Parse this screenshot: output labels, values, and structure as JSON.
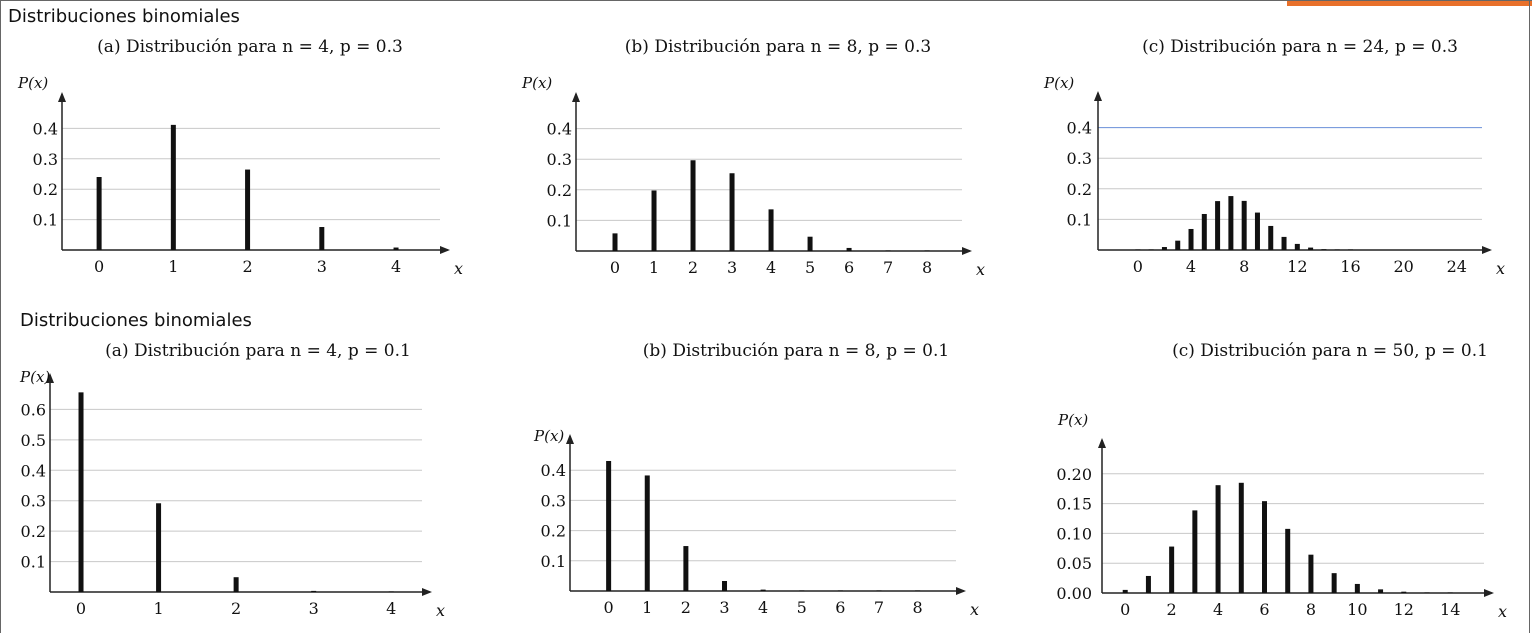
{
  "header": {
    "title_top": "Distribuciones binomiales",
    "title_bottom": "Distribuciones binomiales"
  },
  "colors": {
    "accent": "#e8702a",
    "bar": "#111111",
    "grid": "#c8c8c8",
    "axis": "#222222",
    "blue_line": "#6a8fd8"
  },
  "chart_data": [
    {
      "id": "a1",
      "type": "bar",
      "title": "(a) Distribución para n = 4, p = 0.3",
      "xlabel": "x",
      "ylabel": "P(x)",
      "x": [
        0,
        1,
        2,
        3,
        4
      ],
      "values": [
        0.2401,
        0.4116,
        0.2646,
        0.0756,
        0.0081
      ],
      "xlim": [
        -0.5,
        4.7
      ],
      "ylim": [
        0,
        0.5
      ],
      "xticks": [
        0,
        1,
        2,
        3,
        4
      ],
      "yticks": [
        "0.1",
        "0.2",
        "0.3",
        "0.4"
      ],
      "yticks_val": [
        0.1,
        0.2,
        0.3,
        0.4
      ],
      "grid": true
    },
    {
      "id": "b1",
      "type": "bar",
      "title": "(b) Distribución para n = 8, p = 0.3",
      "xlabel": "x",
      "ylabel": "P(x)",
      "x": [
        0,
        1,
        2,
        3,
        4,
        5,
        6,
        7,
        8
      ],
      "values": [
        0.0576,
        0.1977,
        0.2965,
        0.2541,
        0.1361,
        0.0467,
        0.01,
        0.0012,
        0.0001
      ],
      "xlim": [
        -1,
        9.1
      ],
      "ylim": [
        0,
        0.5
      ],
      "xticks": [
        0,
        1,
        2,
        3,
        4,
        5,
        6,
        7,
        8
      ],
      "yticks": [
        "0.1",
        "0.2",
        "0.3",
        "0.4"
      ],
      "yticks_val": [
        0.1,
        0.2,
        0.3,
        0.4
      ],
      "grid": true
    },
    {
      "id": "c1",
      "type": "bar",
      "title": "(c) Distribución para n = 24, p = 0.3",
      "xlabel": "x",
      "ylabel": "P(x)",
      "x": [
        0,
        1,
        2,
        3,
        4,
        5,
        6,
        7,
        8,
        9,
        10,
        11,
        12,
        13,
        14,
        15,
        16
      ],
      "values": [
        0.0002,
        0.0019,
        0.0097,
        0.0305,
        0.0687,
        0.1177,
        0.1598,
        0.1762,
        0.1605,
        0.1223,
        0.0786,
        0.0428,
        0.0199,
        0.0079,
        0.0027,
        0.0008,
        0.0002
      ],
      "xlim": [
        -3,
        26.5
      ],
      "ylim": [
        0,
        0.5
      ],
      "xticks": [
        0,
        4,
        8,
        12,
        16,
        20,
        24
      ],
      "yticks": [
        "0.1",
        "0.2",
        "0.3",
        "0.4"
      ],
      "yticks_val": [
        0.1,
        0.2,
        0.3,
        0.4
      ],
      "grid": true
    },
    {
      "id": "a2",
      "type": "bar",
      "title": "(a) Distribución para n = 4, p = 0.1",
      "xlabel": "x",
      "ylabel": "P(x)",
      "x": [
        0,
        1,
        2,
        3,
        4
      ],
      "values": [
        0.6561,
        0.2916,
        0.0486,
        0.0036,
        0.0001
      ],
      "xlim": [
        -0.4,
        4.5
      ],
      "ylim": [
        0,
        0.7
      ],
      "xticks": [
        0,
        1,
        2,
        3,
        4
      ],
      "yticks": [
        "0.1",
        "0.2",
        "0.3",
        "0.4",
        "0.5",
        "0.6"
      ],
      "yticks_val": [
        0.1,
        0.2,
        0.3,
        0.4,
        0.5,
        0.6
      ],
      "grid": true
    },
    {
      "id": "b2",
      "type": "bar",
      "title": "(b) Distribución para n = 8, p = 0.1",
      "xlabel": "x",
      "ylabel": "P(x)",
      "x": [
        0,
        1,
        2,
        3,
        4,
        5,
        6,
        7,
        8
      ],
      "values": [
        0.4305,
        0.3826,
        0.1488,
        0.0331,
        0.0046,
        0.0004,
        0.0,
        0.0,
        0.0
      ],
      "xlim": [
        -1,
        9.2
      ],
      "ylim": [
        0,
        0.5
      ],
      "xticks": [
        0,
        1,
        2,
        3,
        4,
        5,
        6,
        7,
        8
      ],
      "yticks": [
        "0.1",
        "0.2",
        "0.3",
        "0.4"
      ],
      "yticks_val": [
        0.1,
        0.2,
        0.3,
        0.4
      ],
      "grid": true
    },
    {
      "id": "c2",
      "type": "bar",
      "title": "(c) Distribución para n = 50, p = 0.1",
      "xlabel": "x",
      "ylabel": "P(x)",
      "x": [
        0,
        1,
        2,
        3,
        4,
        5,
        6,
        7,
        8,
        9,
        10,
        11,
        12,
        13,
        14
      ],
      "values": [
        0.0052,
        0.0286,
        0.0779,
        0.1386,
        0.1809,
        0.1849,
        0.1541,
        0.1076,
        0.0643,
        0.0333,
        0.0152,
        0.0061,
        0.0022,
        0.0007,
        0.0002
      ],
      "xlim": [
        -1,
        15.8
      ],
      "ylim": [
        0,
        0.25
      ],
      "xticks": [
        0,
        2,
        4,
        6,
        8,
        10,
        12,
        14
      ],
      "yticks": [
        "0.00",
        "0.05",
        "0.10",
        "0.15",
        "0.20"
      ],
      "yticks_val": [
        0.0,
        0.05,
        0.1,
        0.15,
        0.2
      ],
      "grid": true
    }
  ]
}
